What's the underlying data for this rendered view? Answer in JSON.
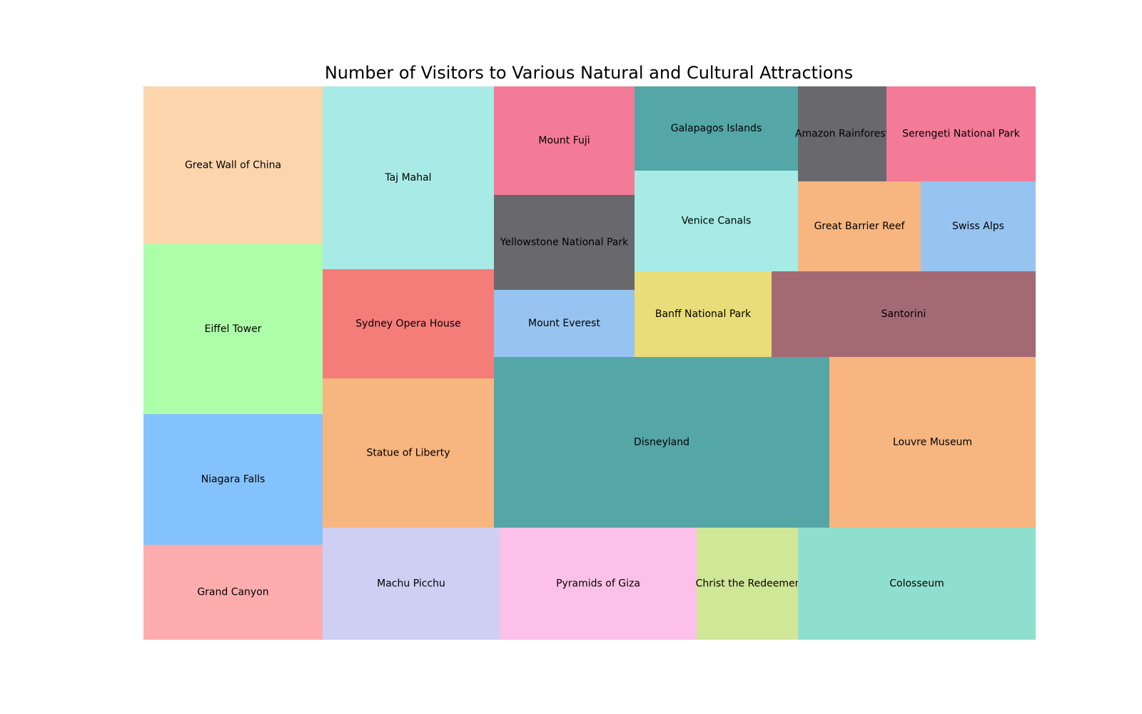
{
  "chart_data": {
    "type": "treemap",
    "title": "Number of Visitors to Various Natural and Cultural Attractions",
    "items": [
      {
        "label": "Great Wall of China",
        "color": "#fdd5ad"
      },
      {
        "label": "Eiffel Tower",
        "color": "#adfea8"
      },
      {
        "label": "Niagara Falls",
        "color": "#84c2fd"
      },
      {
        "label": "Grand Canyon",
        "color": "#fdadae"
      },
      {
        "label": "Taj Mahal",
        "color": "#a8ebe6"
      },
      {
        "label": "Sydney Opera House",
        "color": "#f57d79"
      },
      {
        "label": "Statue of Liberty",
        "color": "#f7b57f"
      },
      {
        "label": "Mount Fuji",
        "color": "#f37b97"
      },
      {
        "label": "Yellowstone National Park",
        "color": "#69686d"
      },
      {
        "label": "Mount Everest",
        "color": "#97c3f0"
      },
      {
        "label": "Galapagos Islands",
        "color": "#55a6a6"
      },
      {
        "label": "Venice Canals",
        "color": "#a8ebe6"
      },
      {
        "label": "Amazon Rainforest",
        "color": "#69686d"
      },
      {
        "label": "Serengeti National Park",
        "color": "#f37b97"
      },
      {
        "label": "Great Barrier Reef",
        "color": "#f7b57f"
      },
      {
        "label": "Swiss Alps",
        "color": "#97c3f0"
      },
      {
        "label": "Banff National Park",
        "color": "#e8dd78"
      },
      {
        "label": "Santorini",
        "color": "#a46a73"
      },
      {
        "label": "Disneyland",
        "color": "#55a6a6"
      },
      {
        "label": "Louvre Museum",
        "color": "#f7b57f"
      },
      {
        "label": "Machu Picchu",
        "color": "#cecff2"
      },
      {
        "label": "Pyramids of Giza",
        "color": "#fdc1e9"
      },
      {
        "label": "Christ the Redeemer",
        "color": "#d0e797"
      },
      {
        "label": "Colosseum",
        "color": "#8fdfce"
      }
    ]
  }
}
